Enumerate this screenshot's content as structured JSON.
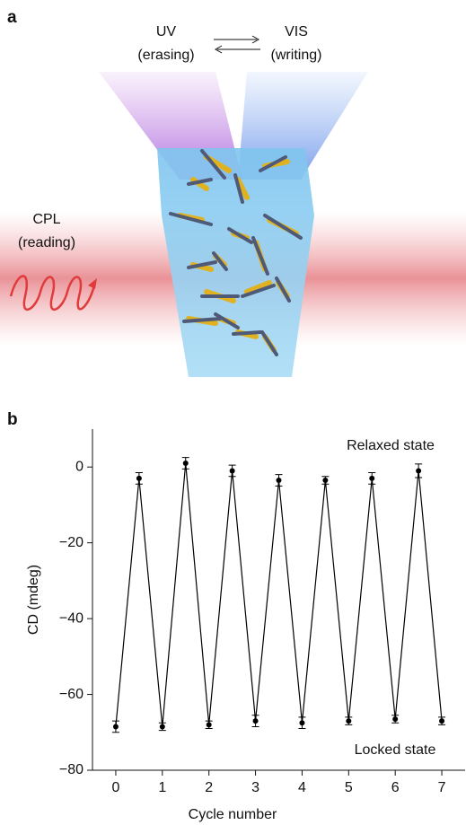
{
  "panel_a": {
    "label": "a",
    "uv": "UV",
    "uv_role": "(erasing)",
    "vis": "VIS",
    "vis_role": "(writing)",
    "cpl": "CPL",
    "cpl_role": "(reading)"
  },
  "chart_data": {
    "type": "line",
    "panel_label": "b",
    "x_label": "Cycle number",
    "y_label": "CD (mdeg)",
    "annotations": [
      "Relaxed state",
      "Locked state"
    ],
    "x": [
      0,
      0.5,
      1,
      1.5,
      2,
      2.5,
      3,
      3.5,
      4,
      4.5,
      5,
      5.5,
      6,
      6.5,
      7
    ],
    "values": [
      -68.5,
      -3,
      -68.5,
      1,
      -68,
      -1,
      -67,
      -3.5,
      -67.5,
      -3.5,
      -67,
      -3,
      -66.5,
      -1,
      -67
    ],
    "errors": [
      1.5,
      1.5,
      1,
      1.5,
      1,
      1.5,
      1.5,
      1.5,
      1.5,
      1,
      1,
      1.5,
      1,
      1.8,
      1
    ],
    "color": "#000000",
    "xlim": [
      -0.5,
      7.5
    ],
    "xticks": [
      0,
      1,
      2,
      3,
      4,
      5,
      6,
      7
    ],
    "ylim": [
      -80,
      10
    ],
    "yticks": [
      {
        "value": -80,
        "label": "−80"
      },
      {
        "value": -60,
        "label": "−60"
      },
      {
        "value": -40,
        "label": "−40"
      },
      {
        "value": -20,
        "label": "−20"
      },
      0
    ]
  }
}
